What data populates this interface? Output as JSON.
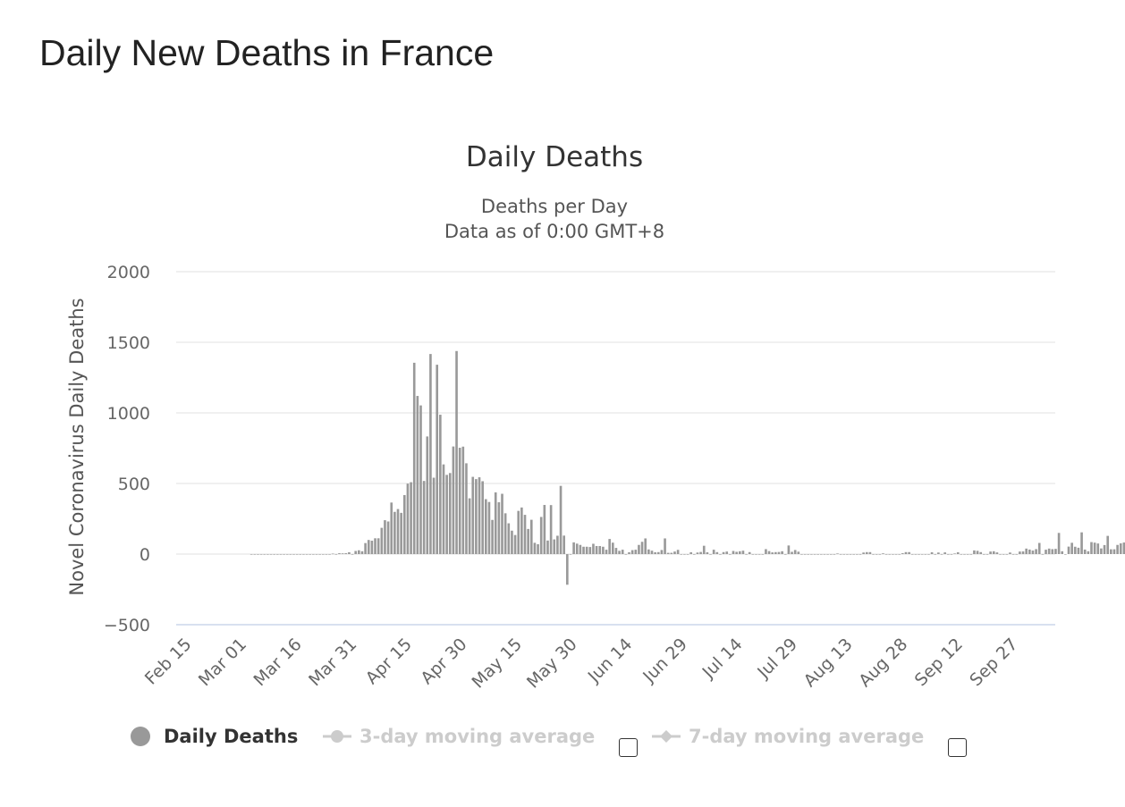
{
  "page": {
    "title": "Daily New Deaths in France"
  },
  "chart_data": {
    "type": "bar",
    "title": "Daily Deaths",
    "subtitle_lines": [
      "Deaths per Day",
      "Data as of 0:00 GMT+8"
    ],
    "ylabel": "Novel Coronavirus Daily Deaths",
    "xlabel": "",
    "ylim": [
      -500,
      2000
    ],
    "yticks": [
      -500,
      0,
      500,
      1000,
      1500,
      2000
    ],
    "ytick_labels": [
      "−500",
      "0",
      "500",
      "1000",
      "1500",
      "2000"
    ],
    "xtick_labels": [
      "Feb 15",
      "Mar 01",
      "Mar 16",
      "Mar 31",
      "Apr 15",
      "Apr 30",
      "May 15",
      "May 30",
      "Jun 14",
      "Jun 29",
      "Jul 14",
      "Jul 29",
      "Aug 13",
      "Aug 28",
      "Sep 12",
      "Sep 27"
    ],
    "x_start": "Feb 15",
    "bar_color": "#999999",
    "grid": true,
    "series": [
      {
        "name": "Daily Deaths",
        "values": [
          0,
          0,
          0,
          0,
          0,
          0,
          0,
          0,
          0,
          0,
          0,
          0,
          0,
          0,
          0,
          0,
          0,
          0,
          0,
          0,
          0,
          0,
          0,
          0,
          0,
          3,
          0,
          6,
          5,
          6,
          13,
          0,
          22,
          27,
          20,
          78,
          100,
          95,
          112,
          112,
          186,
          240,
          231,
          365,
          299,
          319,
          292,
          418,
          499,
          509,
          1355,
          1120,
          1053,
          518,
          833,
          1417,
          541,
          1341,
          987,
          635,
          561,
          574,
          762,
          1438,
          753,
          761,
          643,
          395,
          547,
          531,
          544,
          516,
          389,
          369,
          242,
          437,
          367,
          427,
          289,
          218,
          166,
          135,
          306,
          330,
          278,
          178,
          243,
          80,
          70,
          263,
          348,
          96,
          347,
          104,
          130,
          483,
          131,
          -217,
          0,
          83,
          74,
          65,
          52,
          52,
          50,
          73,
          57,
          57,
          52,
          31,
          107,
          81,
          44,
          23,
          31,
          0,
          13,
          28,
          31,
          65,
          87,
          111,
          33,
          24,
          13,
          14,
          29,
          111,
          9,
          9,
          18,
          30,
          0,
          0,
          0,
          13,
          0,
          11,
          15,
          59,
          13,
          0,
          31,
          14,
          0,
          14,
          18,
          0,
          22,
          16,
          20,
          24,
          0,
          14,
          0,
          0,
          0,
          0,
          35,
          21,
          12,
          14,
          15,
          20,
          0,
          61,
          16,
          29,
          17,
          0,
          0,
          0,
          0,
          0,
          0,
          0,
          0,
          0,
          0,
          0,
          4,
          0,
          0,
          0,
          0,
          0,
          0,
          0,
          11,
          14,
          14,
          0,
          0,
          0,
          5,
          0,
          0,
          0,
          0,
          0,
          6,
          14,
          14,
          0,
          0,
          0,
          0,
          0,
          0,
          13,
          0,
          11,
          0,
          12,
          0,
          0,
          4,
          13,
          0,
          0,
          0,
          0,
          26,
          23,
          14,
          0,
          0,
          18,
          20,
          12,
          0,
          0,
          0,
          11,
          0,
          0,
          18,
          19,
          39,
          32,
          25,
          35,
          79,
          0,
          31,
          39,
          35,
          37,
          150,
          20,
          0,
          53,
          80,
          52,
          45,
          154,
          32,
          20,
          85,
          81,
          75,
          40,
          64,
          129,
          34,
          34,
          65,
          76,
          82,
          69
        ]
      }
    ]
  },
  "legend": {
    "items": [
      {
        "label": "Daily Deaths",
        "color": "#999999",
        "active": true,
        "icon": "circle-marker-icon"
      },
      {
        "label": "3-day moving average",
        "color": "#cccccc",
        "active": false,
        "icon": "line-marker-icon"
      },
      {
        "label": "7-day moving average",
        "color": "#cccccc",
        "active": false,
        "icon": "line-diamond-marker-icon"
      }
    ]
  }
}
